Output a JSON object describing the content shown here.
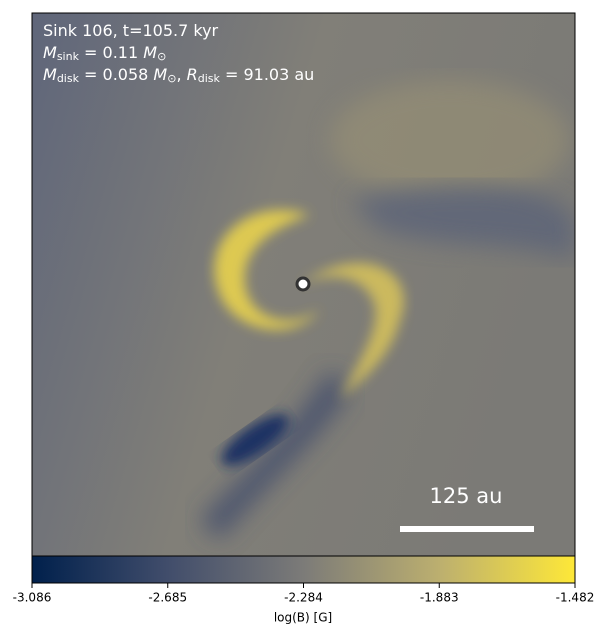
{
  "chart_data": {
    "type": "image",
    "info": [
      {
        "parts": [
          {
            "text": "Sink 106, t=105.7 kyr"
          }
        ]
      },
      {
        "parts": [
          {
            "text": "M",
            "sub": "sink"
          },
          {
            "text": " = 0.11 "
          },
          {
            "text": "M",
            "sub": "⊙"
          }
        ]
      },
      {
        "parts": [
          {
            "text": "M",
            "sub": "disk"
          },
          {
            "text": " = 0.058 "
          },
          {
            "text": "M",
            "sub": "⊙"
          },
          {
            "text": ", "
          },
          {
            "text": "R",
            "sub": "disk"
          },
          {
            "text": " = 91.03 au"
          }
        ]
      }
    ],
    "scale_bar": "125 au",
    "colorbar": {
      "label": "log(B) [G]",
      "clim": [
        -3.086,
        -1.482
      ],
      "ticks": [
        -3.086,
        -2.685,
        -2.284,
        -1.883,
        -1.482
      ],
      "colormap": [
        "#00204c",
        "#414d6b",
        "#7c7b78",
        "#bcaf6f",
        "#fee838"
      ]
    }
  }
}
